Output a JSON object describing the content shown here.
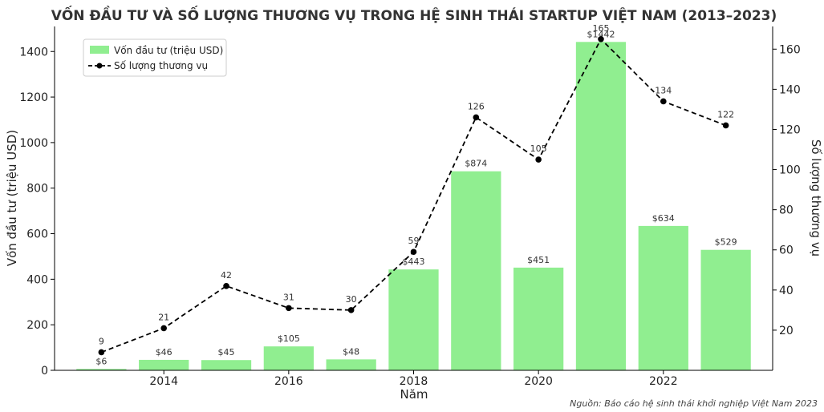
{
  "chart_data": {
    "type": "bar",
    "title": "VỐN ĐẦU TƯ VÀ SỐ LƯỢNG THƯƠNG VỤ TRONG HỆ SINH THÁI STARTUP VIỆT NAM (2013–2023)",
    "xlabel": "Năm",
    "ylabel_left": "Vốn đầu tư (triệu USD)",
    "ylabel_right": "Số lượng thương vụ",
    "x": [
      2013,
      2014,
      2015,
      2016,
      2017,
      2018,
      2019,
      2020,
      2021,
      2022,
      2023
    ],
    "x_ticks": [
      "2014",
      "2016",
      "2018",
      "2020",
      "2022"
    ],
    "y_left_ticks": [
      "0",
      "200",
      "400",
      "600",
      "800",
      "1000",
      "1200",
      "1400"
    ],
    "y_right_ticks": [
      "20",
      "40",
      "60",
      "80",
      "100",
      "120",
      "140",
      "160"
    ],
    "ylim_left": [
      0,
      1510
    ],
    "ylim_right": [
      0,
      171.3
    ],
    "series": [
      {
        "name": "Vốn đầu tư (triệu USD)",
        "kind": "bar",
        "axis": "left",
        "color": "#90ee90",
        "values": [
          6,
          46,
          45,
          105,
          48,
          443,
          874,
          451,
          1442,
          634,
          529
        ],
        "labels": [
          "$6",
          "$46",
          "$45",
          "$105",
          "$48",
          "$443",
          "$874",
          "$451",
          "$1442",
          "$634",
          "$529"
        ]
      },
      {
        "name": "Số lượng thương vụ",
        "kind": "line",
        "axis": "right",
        "color": "#000000",
        "line_style": "dashed",
        "values": [
          9,
          21,
          42,
          31,
          30,
          59,
          126,
          105,
          165,
          134,
          122
        ],
        "labels": [
          "9",
          "21",
          "42",
          "31",
          "30",
          "59",
          "126",
          "105",
          "165",
          "134",
          "122"
        ]
      }
    ],
    "legend_position": "top-left",
    "grid": false,
    "source": "Nguồn: Báo cáo hệ sinh thái khởi nghiệp Việt Nam 2023"
  }
}
